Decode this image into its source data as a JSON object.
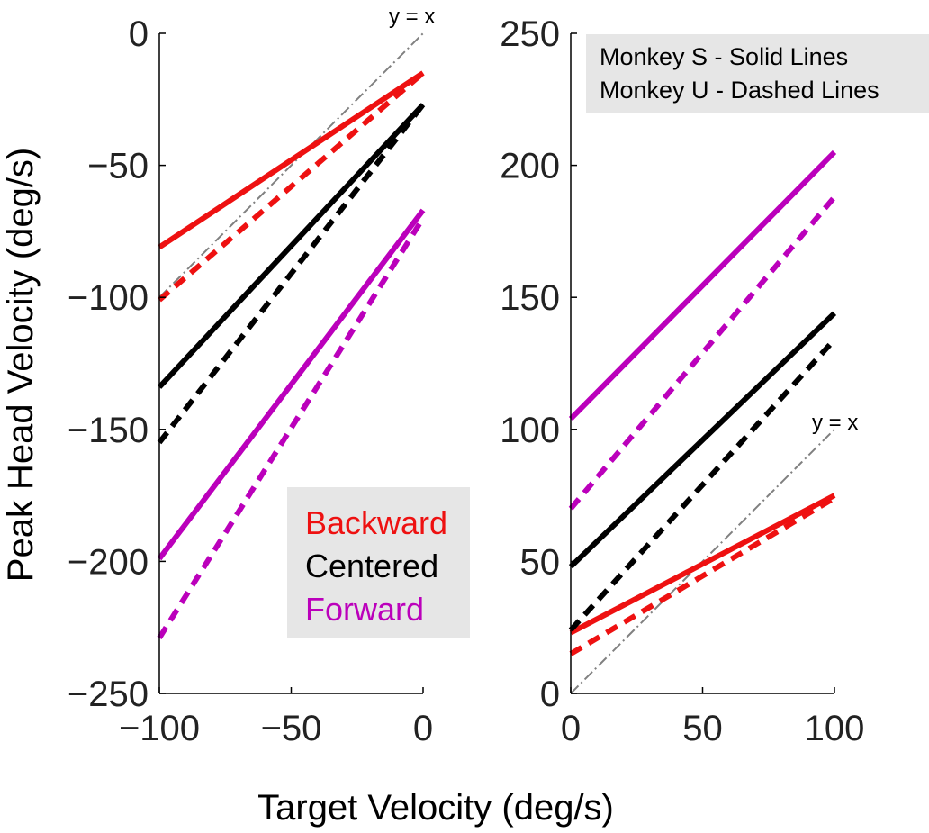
{
  "chart_data": [
    {
      "type": "line",
      "panel": "left",
      "xlim": [
        -100,
        0
      ],
      "ylim": [
        -250,
        0
      ],
      "xticks": [
        -100,
        -50,
        0
      ],
      "yticks": [
        0,
        -50,
        -100,
        -150,
        -200,
        -250
      ],
      "xtick_labels": [
        "−100",
        "−50",
        "0"
      ],
      "ytick_labels": [
        "0",
        "−50",
        "−100",
        "−150",
        "−200",
        "−250"
      ],
      "x": [
        -100,
        0
      ],
      "series": [
        {
          "condition": "Backward",
          "monkey": "S",
          "style": "solid",
          "color": "#ee1111",
          "values": [
            -81,
            -15
          ]
        },
        {
          "condition": "Backward",
          "monkey": "U",
          "style": "dashed",
          "color": "#ee1111",
          "values": [
            -101,
            -15
          ]
        },
        {
          "condition": "Centered",
          "monkey": "S",
          "style": "solid",
          "color": "#000000",
          "values": [
            -134,
            -27
          ]
        },
        {
          "condition": "Centered",
          "monkey": "U",
          "style": "dashed",
          "color": "#000000",
          "values": [
            -155,
            -27
          ]
        },
        {
          "condition": "Forward",
          "monkey": "S",
          "style": "solid",
          "color": "#bb00bb",
          "values": [
            -199,
            -67
          ]
        },
        {
          "condition": "Forward",
          "monkey": "U",
          "style": "dashed",
          "color": "#bb00bb",
          "values": [
            -229,
            -70
          ]
        }
      ],
      "reference_line": {
        "label": "y = x",
        "from": [
          -100,
          -100
        ],
        "to": [
          0,
          0
        ],
        "color": "#808080"
      },
      "legend": {
        "placement": "bottom-right",
        "entries": [
          {
            "label": "Backward",
            "color": "#ee1111"
          },
          {
            "label": "Centered",
            "color": "#000000"
          },
          {
            "label": "Forward",
            "color": "#bb00bb"
          }
        ]
      }
    },
    {
      "type": "line",
      "panel": "right",
      "xlim": [
        0,
        100
      ],
      "ylim": [
        0,
        250
      ],
      "xticks": [
        0,
        50,
        100
      ],
      "yticks": [
        0,
        50,
        100,
        150,
        200,
        250
      ],
      "xtick_labels": [
        "0",
        "50",
        "100"
      ],
      "ytick_labels": [
        "0",
        "50",
        "100",
        "150",
        "200",
        "250"
      ],
      "x": [
        0,
        100
      ],
      "series": [
        {
          "condition": "Backward",
          "monkey": "S",
          "style": "solid",
          "color": "#ee1111",
          "values": [
            23,
            75
          ]
        },
        {
          "condition": "Backward",
          "monkey": "U",
          "style": "dashed",
          "color": "#ee1111",
          "values": [
            15,
            74
          ]
        },
        {
          "condition": "Centered",
          "monkey": "S",
          "style": "solid",
          "color": "#000000",
          "values": [
            48,
            144
          ]
        },
        {
          "condition": "Centered",
          "monkey": "U",
          "style": "dashed",
          "color": "#000000",
          "values": [
            24,
            134
          ]
        },
        {
          "condition": "Forward",
          "monkey": "S",
          "style": "solid",
          "color": "#bb00bb",
          "values": [
            104,
            205
          ]
        },
        {
          "condition": "Forward",
          "monkey": "U",
          "style": "dashed",
          "color": "#bb00bb",
          "values": [
            70,
            188
          ]
        }
      ],
      "reference_line": {
        "label": "y = x",
        "from": [
          0,
          0
        ],
        "to": [
          100,
          100
        ],
        "color": "#808080"
      },
      "note": {
        "placement": "top-right",
        "lines": [
          "Monkey S - Solid Lines",
          "Monkey U - Dashed Lines"
        ]
      }
    }
  ],
  "ylabel": "Peak Head Velocity (deg/s)",
  "xlabel": "Target Velocity (deg/s)",
  "legend_bg": "#e6e6e6"
}
